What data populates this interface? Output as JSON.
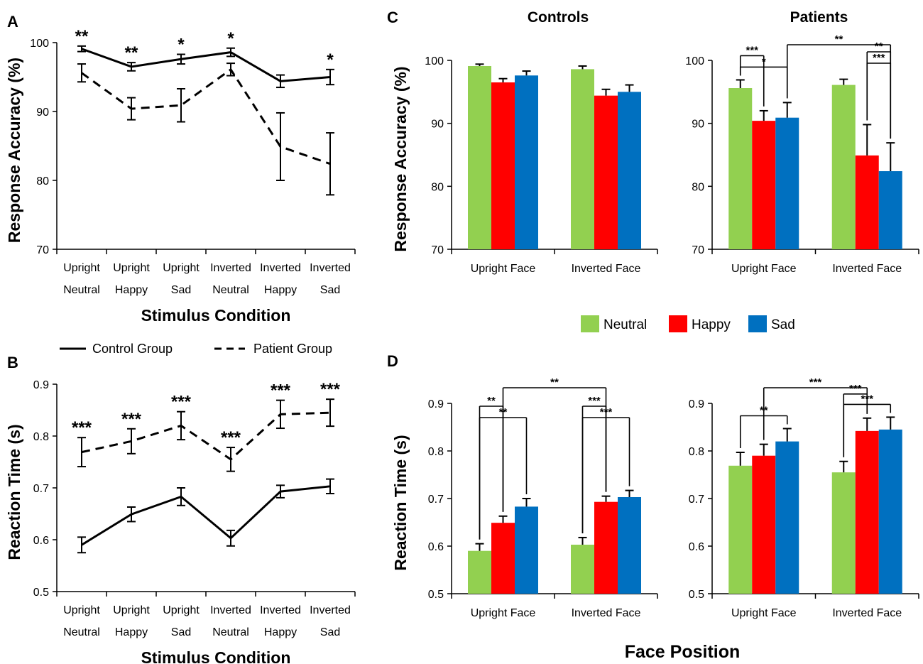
{
  "figure": {
    "shared_xlabel": "Face Position"
  },
  "legend_groups": [
    {
      "label": "Control Group",
      "style": "solid"
    },
    {
      "label": "Patient Group",
      "style": "dashed"
    }
  ],
  "legend_emotions": [
    {
      "label": "Neutral",
      "color": "#92d050"
    },
    {
      "label": "Happy",
      "color": "#ff0000"
    },
    {
      "label": "Sad",
      "color": "#0070c0"
    }
  ],
  "chart_data": [
    {
      "id": "A",
      "panel_label": "A",
      "type": "line",
      "categories": [
        [
          "Upright",
          "Neutral"
        ],
        [
          "Upright",
          "Happy"
        ],
        [
          "Upright",
          "Sad"
        ],
        [
          "Inverted",
          "Neutral"
        ],
        [
          "Inverted",
          "Happy"
        ],
        [
          "Inverted",
          "Sad"
        ]
      ],
      "ylabel": "Response Accuracy (%)",
      "xlabel": "Stimulus Condition",
      "ylim": [
        70,
        100
      ],
      "yticks": [
        "70",
        "80",
        "90",
        "100"
      ],
      "ytick_values": [
        70,
        80,
        90,
        100
      ],
      "series": [
        {
          "name": "Control Group",
          "style": "solid",
          "values": [
            99.1,
            96.5,
            97.6,
            98.6,
            94.4,
            95.0
          ],
          "errors": [
            0.4,
            0.6,
            0.7,
            0.6,
            0.9,
            1.1
          ]
        },
        {
          "name": "Patient Group",
          "style": "dashed",
          "values": [
            95.6,
            90.4,
            90.9,
            96.1,
            84.9,
            82.4
          ],
          "errors": [
            1.3,
            1.6,
            2.4,
            0.9,
            4.9,
            4.5
          ]
        }
      ],
      "significance": [
        "**",
        "**",
        "*",
        "*",
        "",
        "*"
      ]
    },
    {
      "id": "B",
      "panel_label": "B",
      "type": "line",
      "categories": [
        [
          "Upright",
          "Neutral"
        ],
        [
          "Upright",
          "Happy"
        ],
        [
          "Upright",
          "Sad"
        ],
        [
          "Inverted",
          "Neutral"
        ],
        [
          "Inverted",
          "Happy"
        ],
        [
          "Inverted",
          "Sad"
        ]
      ],
      "ylabel": "Reaction Time (s)",
      "xlabel": "Stimulus Condition",
      "ylim": [
        0.5,
        0.9
      ],
      "yticks": [
        "0.5",
        "0.6",
        "0.7",
        "0.8",
        "0.9"
      ],
      "ytick_values": [
        0.5,
        0.6,
        0.7,
        0.8,
        0.9
      ],
      "series": [
        {
          "name": "Control Group",
          "style": "solid",
          "values": [
            0.59,
            0.649,
            0.683,
            0.603,
            0.693,
            0.703
          ],
          "errors": [
            0.015,
            0.014,
            0.017,
            0.015,
            0.012,
            0.014
          ]
        },
        {
          "name": "Patient Group",
          "style": "dashed",
          "values": [
            0.769,
            0.79,
            0.82,
            0.755,
            0.842,
            0.845
          ],
          "errors": [
            0.028,
            0.024,
            0.027,
            0.023,
            0.027,
            0.026
          ]
        }
      ],
      "significance": [
        "***",
        "***",
        "***",
        "***",
        "***",
        "***"
      ]
    },
    {
      "id": "C1",
      "panel_label": "C",
      "title": "Controls",
      "type": "bar",
      "categories": [
        "Upright Face",
        "Inverted Face"
      ],
      "ylabel": "Response Accuracy (%)",
      "ylim": [
        70,
        100
      ],
      "yticks": [
        "70",
        "80",
        "90",
        "100"
      ],
      "ytick_values": [
        70,
        80,
        90,
        100
      ],
      "series": [
        {
          "name": "Neutral",
          "values": [
            99.1,
            98.6
          ],
          "errors": [
            0.3,
            0.5
          ]
        },
        {
          "name": "Happy",
          "values": [
            96.5,
            94.4
          ],
          "errors": [
            0.6,
            1.0
          ]
        },
        {
          "name": "Sad",
          "values": [
            97.6,
            95.0
          ],
          "errors": [
            0.7,
            1.1
          ]
        }
      ],
      "brackets": []
    },
    {
      "id": "C2",
      "panel_label": "",
      "title": "Patients",
      "type": "bar",
      "categories": [
        "Upright Face",
        "Inverted Face"
      ],
      "ylabel": "",
      "ylim": [
        70,
        100
      ],
      "yticks": [
        "70",
        "80",
        "90",
        "100"
      ],
      "ytick_values": [
        70,
        80,
        90,
        100
      ],
      "series": [
        {
          "name": "Neutral",
          "values": [
            95.6,
            96.1
          ],
          "errors": [
            1.3,
            0.9
          ]
        },
        {
          "name": "Happy",
          "values": [
            90.4,
            84.9
          ],
          "errors": [
            1.6,
            4.9
          ]
        },
        {
          "name": "Sad",
          "values": [
            90.9,
            82.4
          ],
          "errors": [
            2.4,
            4.5
          ]
        }
      ],
      "brackets": [
        {
          "from": [
            0,
            0
          ],
          "to": [
            0,
            2
          ],
          "label": "*",
          "level": 0
        },
        {
          "from": [
            0,
            0
          ],
          "to": [
            0,
            1
          ],
          "label": "***",
          "level": 1
        },
        {
          "from": [
            0,
            2
          ],
          "to": [
            1,
            2
          ],
          "label": "**",
          "level": 0
        },
        {
          "from": [
            1,
            1
          ],
          "to": [
            1,
            2
          ],
          "label": "***",
          "level": 1
        },
        {
          "from": [
            1,
            1
          ],
          "to": [
            1,
            2
          ],
          "label": "**",
          "level": 2,
          "anchor": "left"
        }
      ]
    },
    {
      "id": "D1",
      "panel_label": "D",
      "type": "bar",
      "categories": [
        "Upright Face",
        "Inverted Face"
      ],
      "ylabel": "Reaction Time (s)",
      "ylim": [
        0.5,
        0.9
      ],
      "yticks": [
        "0.5",
        "0.6",
        "0.7",
        "0.8",
        "0.9"
      ],
      "ytick_values": [
        0.5,
        0.6,
        0.7,
        0.8,
        0.9
      ],
      "series": [
        {
          "name": "Neutral",
          "values": [
            0.59,
            0.603
          ],
          "errors": [
            0.015,
            0.015
          ]
        },
        {
          "name": "Happy",
          "values": [
            0.649,
            0.693
          ],
          "errors": [
            0.014,
            0.012
          ]
        },
        {
          "name": "Sad",
          "values": [
            0.683,
            0.703
          ],
          "errors": [
            0.017,
            0.014
          ]
        }
      ],
      "brackets": [
        {
          "from": [
            0,
            0
          ],
          "to": [
            0,
            2
          ],
          "label": "**",
          "level": 0
        },
        {
          "from": [
            0,
            0
          ],
          "to": [
            0,
            1
          ],
          "label": "**",
          "level": 1
        },
        {
          "from": [
            0,
            1
          ],
          "to": [
            1,
            1
          ],
          "label": "**",
          "level": 0
        },
        {
          "from": [
            1,
            0
          ],
          "to": [
            1,
            2
          ],
          "label": "***",
          "level": 0
        },
        {
          "from": [
            1,
            0
          ],
          "to": [
            1,
            1
          ],
          "label": "***",
          "level": 1
        }
      ]
    },
    {
      "id": "D2",
      "panel_label": "",
      "type": "bar",
      "categories": [
        "Upright Face",
        "Inverted Face"
      ],
      "ylabel": "",
      "ylim": [
        0.5,
        0.9
      ],
      "yticks": [
        "0.5",
        "0.6",
        "0.7",
        "0.8",
        "0.9"
      ],
      "ytick_values": [
        0.5,
        0.6,
        0.7,
        0.8,
        0.9
      ],
      "series": [
        {
          "name": "Neutral",
          "values": [
            0.769,
            0.755
          ],
          "errors": [
            0.028,
            0.023
          ]
        },
        {
          "name": "Happy",
          "values": [
            0.79,
            0.842
          ],
          "errors": [
            0.024,
            0.027
          ]
        },
        {
          "name": "Sad",
          "values": [
            0.82,
            0.845
          ],
          "errors": [
            0.027,
            0.026
          ]
        }
      ],
      "brackets": [
        {
          "from": [
            0,
            0
          ],
          "to": [
            0,
            2
          ],
          "label": "**",
          "level": 0
        },
        {
          "from": [
            0,
            1
          ],
          "to": [
            1,
            1
          ],
          "label": "***",
          "level": 0
        },
        {
          "from": [
            1,
            0
          ],
          "to": [
            1,
            2
          ],
          "label": "***",
          "level": 0
        },
        {
          "from": [
            1,
            0
          ],
          "to": [
            1,
            1
          ],
          "label": "***",
          "level": 1
        }
      ]
    }
  ]
}
